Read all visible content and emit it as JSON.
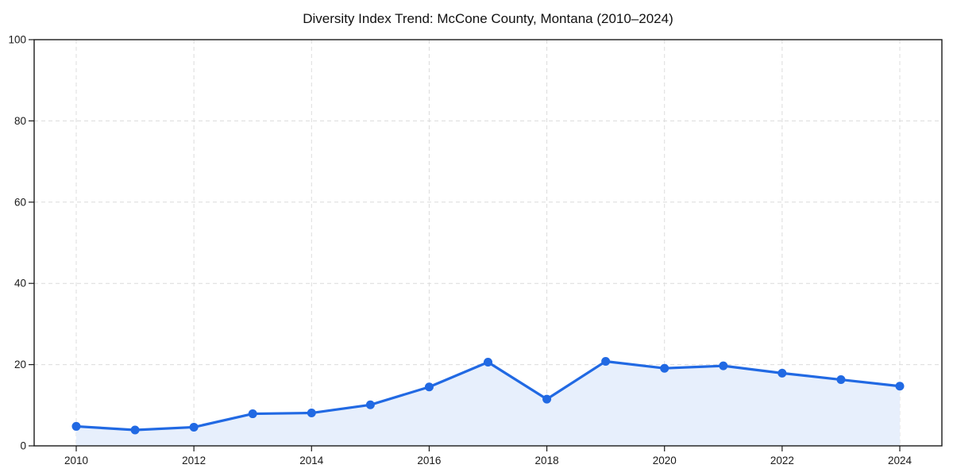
{
  "page": {
    "background_color": "#ffffff"
  },
  "chart_data": {
    "type": "line",
    "title": "Diversity Index Trend: McCone County, Montana (2010–2024)",
    "xlabel": "",
    "ylabel": "",
    "x": [
      2010,
      2011,
      2012,
      2013,
      2014,
      2015,
      2016,
      2017,
      2018,
      2019,
      2020,
      2021,
      2022,
      2023,
      2024
    ],
    "series": [
      {
        "name": "Diversity Index",
        "values": [
          4.8,
          3.9,
          4.6,
          7.9,
          8.1,
          10.1,
          14.5,
          20.6,
          11.5,
          20.8,
          19.1,
          19.7,
          17.9,
          16.3,
          14.7
        ]
      }
    ],
    "ylim": [
      0,
      100
    ],
    "yticks": [
      0,
      20,
      40,
      60,
      80,
      100
    ],
    "xticks": [
      2010,
      2012,
      2014,
      2016,
      2018,
      2020,
      2022,
      2024
    ],
    "grid": true,
    "grid_style": "dashed",
    "legend": "none",
    "area_fill": true,
    "marker": "circle",
    "colors": {
      "line": "#2169e3",
      "marker": "#2169e3",
      "area": "#e7effc",
      "gridline": "#dcdcdc",
      "axis": "#1a1a1a",
      "text": "#1a1a1a",
      "title": "#111111"
    }
  }
}
